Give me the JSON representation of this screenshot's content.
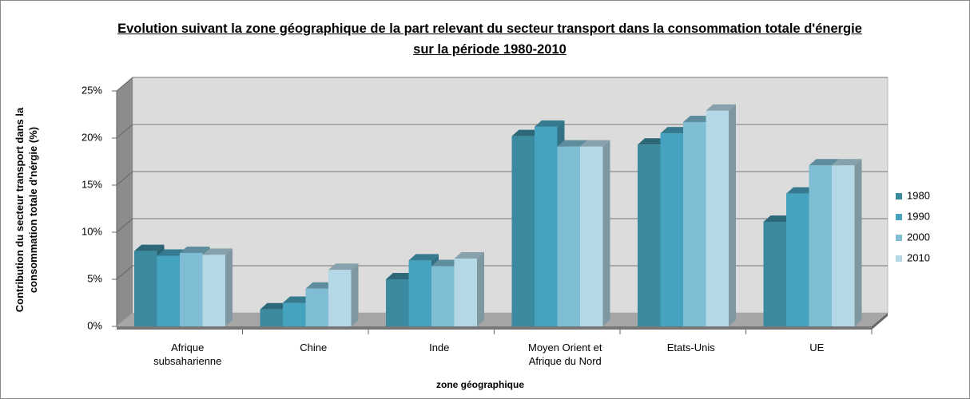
{
  "chart_data": {
    "type": "bar3d",
    "title": "Evolution suivant la zone géographique de la part relevant du secteur transport dans la consommation totale d'énergie sur la période 1980-2010",
    "x_label": "zone géographique",
    "y_label": "Contribution du secteur transport dans la consommation totale d'nérgie (%)",
    "categories": [
      "Afrique subsaharienne",
      "Chine",
      "Inde",
      "Moyen Orient et Afrique du Nord",
      "Etats-Unis",
      "UE"
    ],
    "series": [
      {
        "name": "1980",
        "color": "#3b8aa0",
        "values": [
          8.0,
          1.8,
          5.0,
          20.2,
          19.3,
          11.1
        ]
      },
      {
        "name": "1990",
        "color": "#46a3bf",
        "values": [
          7.5,
          2.5,
          7.0,
          21.2,
          20.5,
          14.1
        ]
      },
      {
        "name": "2000",
        "color": "#7ebdd3",
        "values": [
          7.8,
          4.0,
          6.4,
          19.1,
          21.7,
          17.1
        ]
      },
      {
        "name": "2010",
        "color": "#b4d8e5",
        "values": [
          7.6,
          6.0,
          7.2,
          19.1,
          22.9,
          17.1
        ]
      }
    ],
    "ylim": [
      0,
      25
    ],
    "yticks": [
      {
        "value": 0,
        "label": "0%"
      },
      {
        "value": 5,
        "label": "5%"
      },
      {
        "value": 10,
        "label": "10%"
      },
      {
        "value": 15,
        "label": "15%"
      },
      {
        "value": 20,
        "label": "20%"
      },
      {
        "value": 25,
        "label": "25%"
      }
    ],
    "grid": true,
    "legend": "right"
  }
}
